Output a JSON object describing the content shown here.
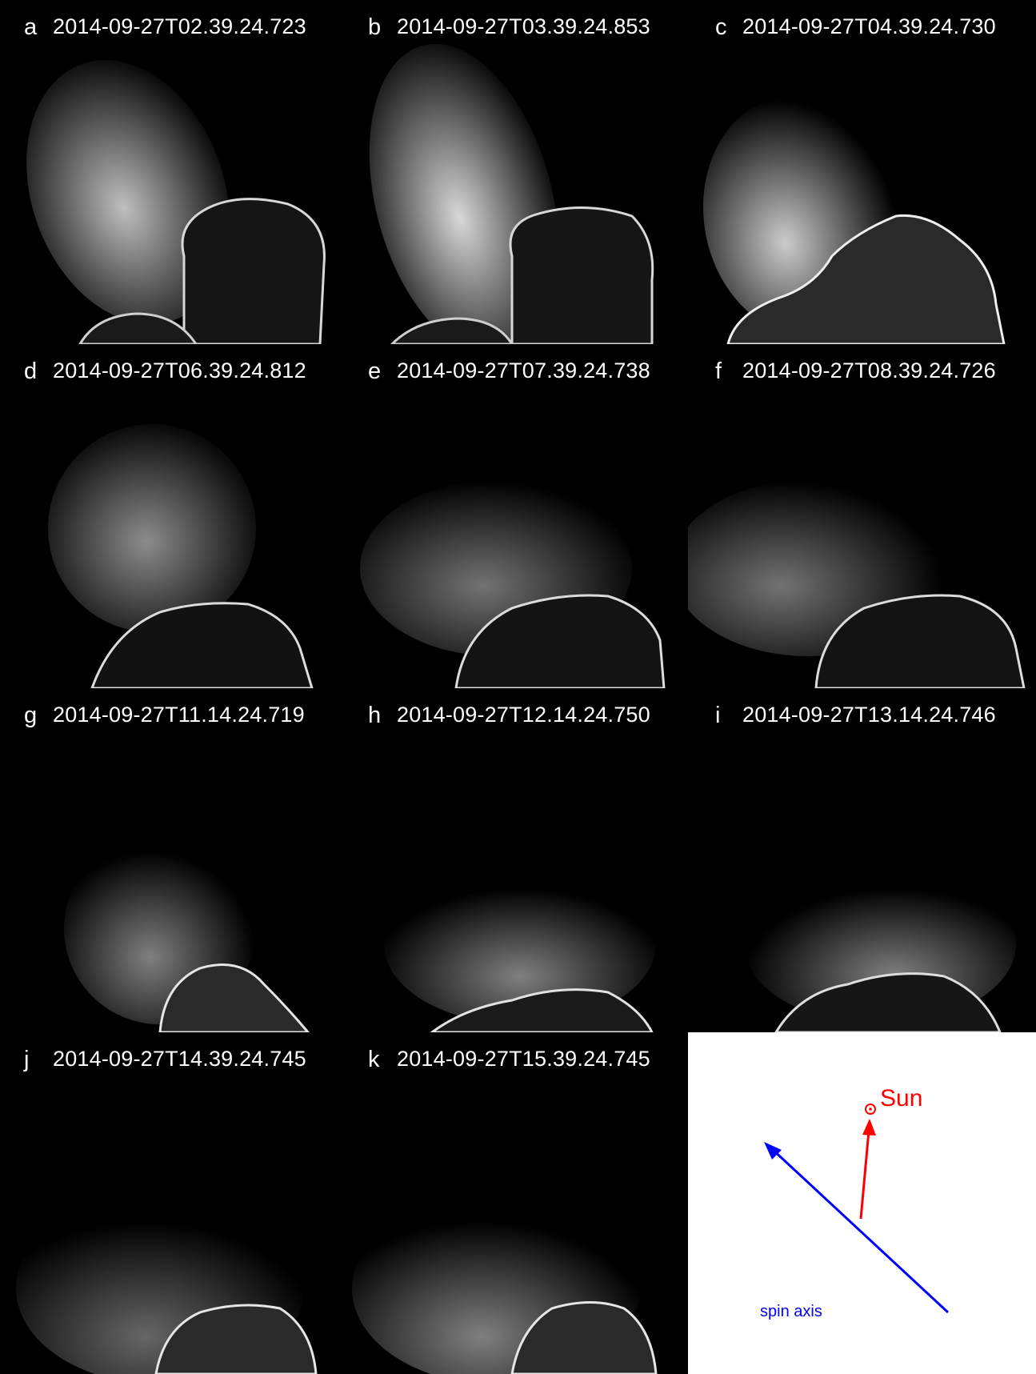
{
  "panels": [
    {
      "letter": "a",
      "timestamp": "2014-09-27T02.39.24.723"
    },
    {
      "letter": "b",
      "timestamp": "2014-09-27T03.39.24.853"
    },
    {
      "letter": "c",
      "timestamp": "2014-09-27T04.39.24.730"
    },
    {
      "letter": "d",
      "timestamp": "2014-09-27T06.39.24.812"
    },
    {
      "letter": "e",
      "timestamp": "2014-09-27T07.39.24.738"
    },
    {
      "letter": "f",
      "timestamp": "2014-09-27T08.39.24.726"
    },
    {
      "letter": "g",
      "timestamp": "2014-09-27T11.14.24.719"
    },
    {
      "letter": "h",
      "timestamp": "2014-09-27T12.14.24.750"
    },
    {
      "letter": "i",
      "timestamp": "2014-09-27T13.14.24.746"
    },
    {
      "letter": "j",
      "timestamp": "2014-09-27T14.39.24.745"
    },
    {
      "letter": "k",
      "timestamp": "2014-09-27T15.39.24.745"
    }
  ],
  "diagram": {
    "sun_label": "Sun",
    "spin_axis_label": "spin axis",
    "sun_color": "#ff0000",
    "spin_axis_color": "#0000ff"
  }
}
